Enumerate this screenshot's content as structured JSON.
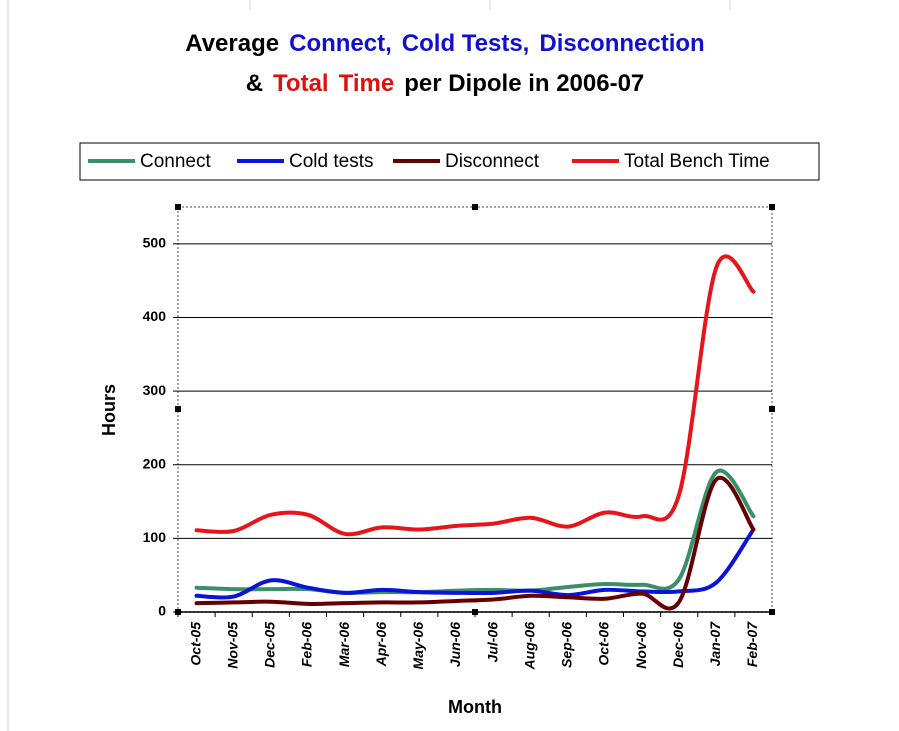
{
  "chart_data": {
    "type": "line",
    "title": [
      [
        {
          "text": "Average",
          "color": "#000000"
        },
        {
          "text": "Connect,",
          "color": "#1010d0"
        },
        {
          "text": "Cold Tests,",
          "color": "#1010d0"
        },
        {
          "text": "Disconnection",
          "color": "#1010d0"
        }
      ],
      [
        {
          "text": "&",
          "color": "#000000"
        },
        {
          "text": "Total",
          "color": "#e01010"
        },
        {
          "text": "Time",
          "color": "#e01010"
        },
        {
          "text": "per Dipole in 2006-07",
          "color": "#000000"
        }
      ]
    ],
    "x_label": "Month",
    "y_label": "Hours",
    "categories": [
      "Oct-05",
      "Nov-05",
      "Dec-05",
      "Feb-06",
      "Mar-06",
      "Apr-06",
      "May-06",
      "Jun-06",
      "Jul-06",
      "Aug-06",
      "Sep-06",
      "Oct-06",
      "Nov-06",
      "Dec-06",
      "Jan-07",
      "Feb-07"
    ],
    "series": [
      {
        "name": "Connect",
        "color": "#3a8f6a",
        "values": [
          33,
          31,
          31,
          31,
          26,
          27,
          27,
          29,
          30,
          29,
          34,
          38,
          37,
          45,
          190,
          130
        ]
      },
      {
        "name": "Cold tests",
        "color": "#0a14d8",
        "values": [
          22,
          21,
          43,
          33,
          26,
          30,
          27,
          26,
          26,
          29,
          23,
          30,
          28,
          28,
          40,
          112
        ]
      },
      {
        "name": "Disconnect",
        "color": "#660000",
        "values": [
          12,
          13,
          14,
          11,
          12,
          13,
          13,
          15,
          17,
          22,
          20,
          18,
          25,
          14,
          180,
          112
        ]
      },
      {
        "name": "Total Bench Time",
        "color": "#e8141c",
        "values": [
          111,
          110,
          132,
          132,
          106,
          115,
          112,
          117,
          120,
          128,
          116,
          135,
          130,
          160,
          468,
          435
        ]
      }
    ],
    "ylim": [
      0,
      550
    ],
    "yticks": [
      0,
      100,
      200,
      300,
      400,
      500
    ],
    "grid": true
  }
}
